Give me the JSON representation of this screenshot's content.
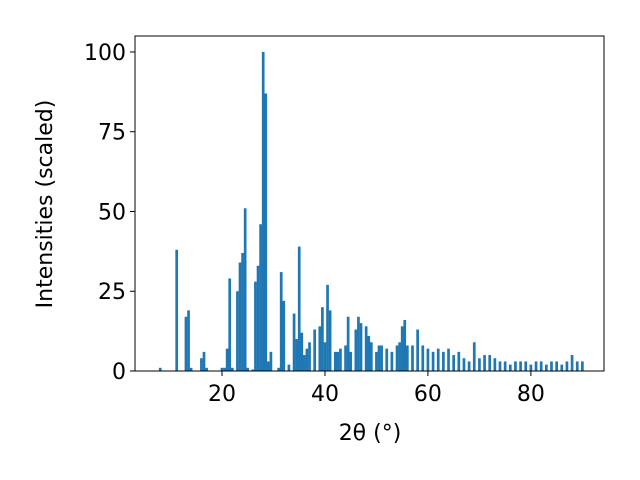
{
  "chart_data": {
    "type": "bar",
    "x": [
      8,
      11.2,
      13,
      13.5,
      14,
      16,
      16.5,
      17,
      20,
      20.5,
      21,
      21.5,
      22,
      23,
      23.5,
      24,
      24.5,
      25,
      26,
      26.5,
      27,
      27.5,
      28,
      28.5,
      29,
      29.5,
      31,
      31.5,
      32,
      33,
      34,
      34.5,
      35,
      35.5,
      36,
      36.5,
      37,
      38,
      39,
      39.5,
      40,
      40.5,
      41,
      42,
      42.5,
      43,
      44,
      44.5,
      45,
      46,
      46.5,
      47,
      48,
      48.5,
      49,
      50,
      50.5,
      51,
      52,
      53,
      54,
      54.5,
      55,
      55.5,
      56,
      57,
      58,
      59,
      60,
      61,
      62,
      63,
      64,
      65,
      66,
      67,
      68,
      69,
      70,
      71,
      72,
      73,
      74,
      75,
      76,
      77,
      78,
      79,
      80,
      81,
      82,
      83,
      84,
      85,
      86,
      87,
      88,
      89,
      90
    ],
    "values": [
      1,
      38,
      17,
      19,
      1,
      4,
      6,
      1,
      1,
      1,
      7,
      29,
      1,
      25,
      34,
      37,
      51,
      1,
      0.5,
      28,
      33,
      46,
      100,
      87,
      3,
      6,
      1,
      31,
      22,
      2,
      18,
      10,
      39,
      12,
      5,
      7,
      9,
      13,
      14,
      20,
      9,
      27,
      19,
      6,
      6,
      7,
      8,
      17,
      6,
      13,
      17,
      15,
      14,
      11,
      9,
      6,
      8,
      8,
      7,
      6,
      8,
      9,
      14,
      16,
      8,
      8,
      13,
      8,
      7,
      6,
      7,
      6,
      7,
      5,
      6,
      4,
      3,
      9,
      4,
      5,
      5,
      4,
      3,
      3,
      2,
      3,
      3,
      3,
      2,
      3,
      3,
      2,
      3,
      3,
      2,
      3,
      5,
      3,
      3
    ],
    "color": "#1f77b4",
    "xlabel": "2θ (°)",
    "ylabel": "Intensities (scaled)",
    "xlim": [
      3.1,
      94.2
    ],
    "ylim": [
      0,
      105
    ],
    "xticks": [
      20,
      40,
      60,
      80
    ],
    "yticks": [
      0,
      25,
      50,
      75,
      100
    ]
  }
}
